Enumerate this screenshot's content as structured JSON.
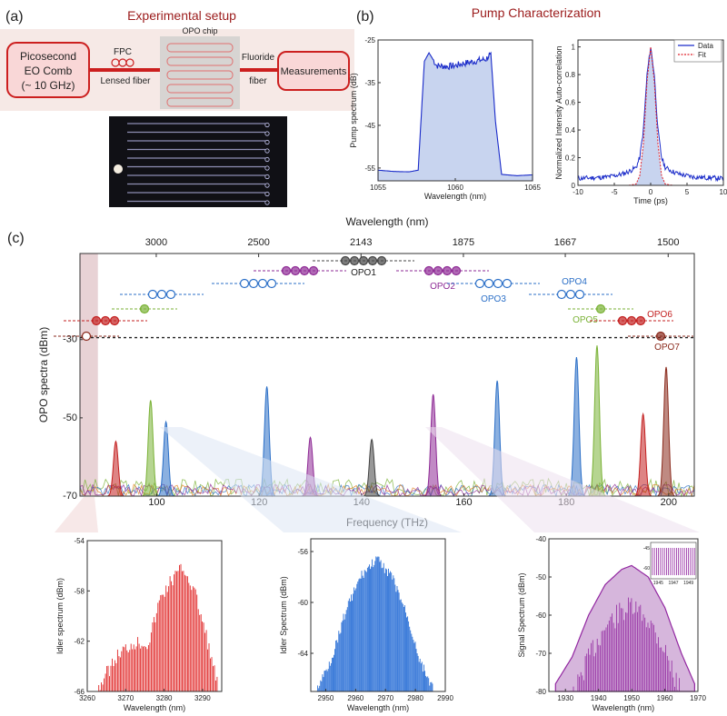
{
  "panel_a": {
    "label": "(a)",
    "title": "Experimental setup",
    "boxes": {
      "comb": [
        "Picosecond",
        "EO Comb",
        "(~ 10 GHz)"
      ],
      "measure": "Measurements"
    },
    "labels": {
      "fpc": "FPC",
      "lensed": "Lensed fiber",
      "chip": "OPO chip",
      "fluoride": [
        "Fluoride",
        "fiber"
      ]
    },
    "colors": {
      "accent": "#cc1f1f",
      "box_fill": "#f9d7d7",
      "bg": "#f6e9e6"
    }
  },
  "panel_b": {
    "label": "(b)",
    "title": "Pump Characterization"
  },
  "panel_c": {
    "label": "(c)"
  },
  "chart_data": [
    {
      "type": "area",
      "id": "pump_spectrum",
      "xlabel": "Wavelength (nm)",
      "ylabel": "Pump spectrum (dB)",
      "xlim": [
        1055,
        1065
      ],
      "ylim": [
        -58,
        -25
      ],
      "xticks": [
        1055,
        1060,
        1065
      ],
      "yticks": [
        -25,
        -35,
        -45,
        -55
      ],
      "x": [
        1055,
        1056,
        1057,
        1057.6,
        1058,
        1058.3,
        1058.8,
        1059.5,
        1060,
        1060.5,
        1061,
        1061.5,
        1062,
        1062.3,
        1062.6,
        1063,
        1064,
        1065
      ],
      "y": [
        -55.5,
        -55.8,
        -55.9,
        -55.5,
        -30,
        -28,
        -31,
        -31.2,
        -31,
        -30.5,
        -30.2,
        -29.8,
        -29.5,
        -28,
        -44,
        -56.5,
        -56.8,
        -56.6
      ],
      "color": "#1a2bc9"
    },
    {
      "type": "line",
      "id": "autocorrelation",
      "xlabel": "Time (ps)",
      "ylabel": "Normalized Intensity Auto-correlation",
      "xlim": [
        -10,
        10
      ],
      "ylim": [
        0,
        1.05
      ],
      "xticks": [
        -10,
        -5,
        0,
        5,
        10
      ],
      "yticks": [
        0,
        0.2,
        0.4,
        0.6,
        0.8,
        1
      ],
      "series": [
        {
          "name": "Data",
          "x": [
            -10,
            -6,
            -4,
            -3,
            -2,
            -1.5,
            -1,
            -0.5,
            0,
            0.5,
            1,
            1.5,
            2,
            3,
            4,
            6,
            10
          ],
          "y": [
            0.05,
            0.06,
            0.08,
            0.1,
            0.13,
            0.2,
            0.4,
            0.8,
            1,
            0.8,
            0.4,
            0.2,
            0.13,
            0.1,
            0.08,
            0.06,
            0.05
          ],
          "color": "#1a2bc9"
        },
        {
          "name": "Fit",
          "x": [
            -3,
            -2,
            -1.5,
            -1,
            -0.5,
            0,
            0.5,
            1,
            1.5,
            2,
            3
          ],
          "y": [
            0,
            0.01,
            0.07,
            0.3,
            0.75,
            1,
            0.75,
            0.3,
            0.07,
            0.01,
            0
          ],
          "color": "#e0202a"
        }
      ]
    },
    {
      "type": "area",
      "id": "opo_spectra",
      "xlabel": "Frequency (THz)",
      "ylabel": "OPO spectra (dBm)",
      "top_axis_label": "Wavelength (nm)",
      "xlim": [
        85,
        205
      ],
      "ylim": [
        -70,
        -8
      ],
      "xticks": [
        100,
        120,
        140,
        160,
        180,
        200
      ],
      "yticks": [
        -70,
        -50,
        -30
      ],
      "top_ticks": [
        {
          "freq": 99.9,
          "label": "3000"
        },
        {
          "freq": 119.9,
          "label": "2500"
        },
        {
          "freq": 139.9,
          "label": "2143"
        },
        {
          "freq": 159.9,
          "label": "1875"
        },
        {
          "freq": 179.8,
          "label": "1667"
        },
        {
          "freq": 199.9,
          "label": "1500"
        }
      ],
      "threshold_dbm": -29.5,
      "peaks": [
        {
          "f": 92,
          "peak": -56,
          "color": "#c31f1f"
        },
        {
          "f": 98.8,
          "peak": -45.5,
          "color": "#7ab236"
        },
        {
          "f": 101.8,
          "peak": -51,
          "color": "#2b6fc7"
        },
        {
          "f": 121.5,
          "peak": -42,
          "color": "#2b6fc7"
        },
        {
          "f": 130,
          "peak": -55,
          "color": "#8e2a95"
        },
        {
          "f": 142,
          "peak": -55.5,
          "color": "#444444"
        },
        {
          "f": 154,
          "peak": -44,
          "color": "#8e2a95"
        },
        {
          "f": 166.5,
          "peak": -40.5,
          "color": "#2b6fc7"
        },
        {
          "f": 182,
          "peak": -34.5,
          "color": "#2b6fc7"
        },
        {
          "f": 186,
          "peak": -31.5,
          "color": "#7ab236"
        },
        {
          "f": 195,
          "peak": -49,
          "color": "#c31f1f"
        },
        {
          "f": 199.5,
          "peak": -37,
          "color": "#8a2a1c"
        }
      ],
      "opo_labels": [
        {
          "name": "OPO1",
          "color": "#222222"
        },
        {
          "name": "OPO2",
          "color": "#8e2a95"
        },
        {
          "name": "OPO3",
          "color": "#2b6fc7"
        },
        {
          "name": "OPO4",
          "color": "#2b6fc7"
        },
        {
          "name": "OPO5",
          "color": "#7ab236"
        },
        {
          "name": "OPO6",
          "color": "#c31f1f"
        },
        {
          "name": "OPO7",
          "color": "#8a2a1c"
        }
      ]
    },
    {
      "type": "bar",
      "id": "idler_red",
      "xlabel": "Wavelength (nm)",
      "ylabel": "Idler spectrum (dBm)",
      "xlim": [
        3260,
        3295
      ],
      "ylim": [
        -66,
        -54
      ],
      "xticks": [
        3260,
        3270,
        3280,
        3290
      ],
      "yticks": [
        -54,
        -58,
        -62,
        -66
      ],
      "envelope_x": [
        3263,
        3268,
        3272,
        3276,
        3279,
        3282,
        3285,
        3288,
        3291,
        3294
      ],
      "envelope_y": [
        -65,
        -62.5,
        -61.5,
        -61.5,
        -58,
        -56.5,
        -55.5,
        -57.5,
        -61,
        -65
      ],
      "color": "#e02727"
    },
    {
      "type": "bar",
      "id": "idler_blue",
      "xlabel": "Wavelength (nm)",
      "ylabel": "Idler Spectrum (dBm)",
      "xlim": [
        2945,
        2990
      ],
      "ylim": [
        -67,
        -55
      ],
      "xticks": [
        2950,
        2960,
        2970,
        2980,
        2990
      ],
      "yticks": [
        -56,
        -60,
        -64
      ],
      "envelope_x": [
        2947,
        2952,
        2957,
        2962,
        2967,
        2972,
        2977,
        2982,
        2987
      ],
      "envelope_y": [
        -66.5,
        -64,
        -60,
        -57.5,
        -56.2,
        -57.5,
        -60.5,
        -64.5,
        -66.8
      ],
      "color": "#2b70d6"
    },
    {
      "type": "bar",
      "id": "signal_purple",
      "xlabel": "Wavelength (nm)",
      "ylabel": "Signal Spectrum (dBm)",
      "xlim": [
        1925,
        1970
      ],
      "ylim": [
        -80,
        -40
      ],
      "xticks": [
        1930,
        1940,
        1950,
        1960,
        1970
      ],
      "yticks": [
        -40,
        -50,
        -60,
        -70,
        -80
      ],
      "envelope_x": [
        1927,
        1932,
        1937,
        1942,
        1947,
        1950,
        1955,
        1960,
        1965,
        1969
      ],
      "envelope_y": [
        -78,
        -71,
        -60,
        -52,
        -48,
        -47,
        -50,
        -58,
        -70,
        -78
      ],
      "color": "#9227a1",
      "inset": {
        "xticks": [
          1945,
          1947,
          1949
        ],
        "yticks": [
          -45,
          -60
        ]
      }
    }
  ]
}
